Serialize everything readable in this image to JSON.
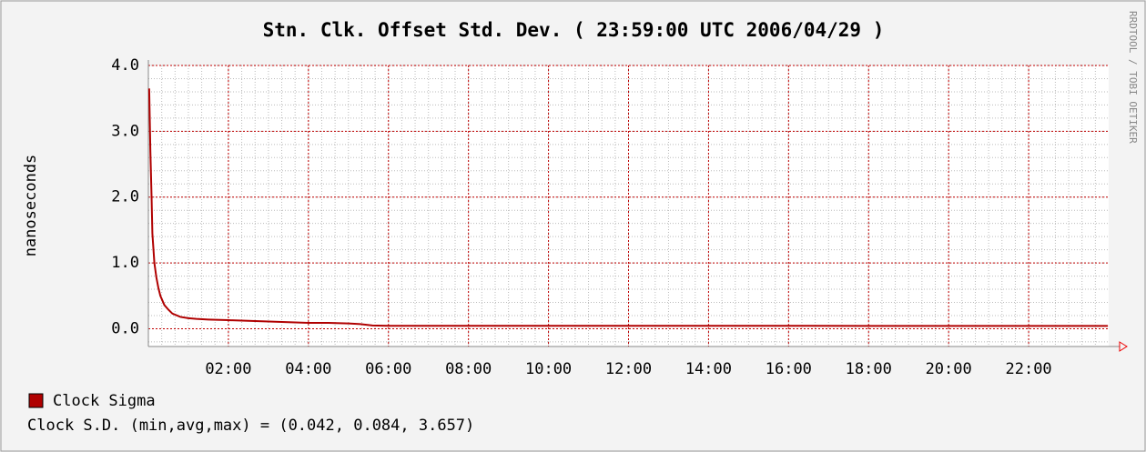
{
  "chart_data": {
    "type": "line",
    "title": "Stn. Clk. Offset Std. Dev. ( 23:59:00 UTC 2006/04/29 )",
    "y_label": "nanoseconds",
    "watermark": "RRDTOOL / TOBI OETIKER",
    "x": [
      0.02,
      0.05,
      0.08,
      0.1,
      0.15,
      0.2,
      0.25,
      0.3,
      0.4,
      0.5,
      0.6,
      0.8,
      1.0,
      1.2,
      1.5,
      2,
      2.5,
      3,
      3.5,
      4,
      4.5,
      5,
      5.3,
      5.6,
      6,
      8,
      10,
      12,
      14,
      16,
      18,
      20,
      22,
      23.98
    ],
    "series": [
      {
        "name": "Clock Sigma",
        "color": "#b00000",
        "values": [
          3.65,
          2.7,
          2.0,
          1.45,
          1.0,
          0.78,
          0.62,
          0.5,
          0.36,
          0.29,
          0.23,
          0.18,
          0.16,
          0.15,
          0.14,
          0.13,
          0.12,
          0.11,
          0.1,
          0.09,
          0.09,
          0.08,
          0.07,
          0.05,
          0.045,
          0.045,
          0.045,
          0.044,
          0.044,
          0.044,
          0.043,
          0.043,
          0.043,
          0.043
        ]
      }
    ],
    "xlim": [
      0,
      24
    ],
    "ylim": [
      -0.27,
      4.0
    ],
    "xticks": [
      {
        "value": 2,
        "label": "02:00"
      },
      {
        "value": 4,
        "label": "04:00"
      },
      {
        "value": 6,
        "label": "06:00"
      },
      {
        "value": 8,
        "label": "08:00"
      },
      {
        "value": 10,
        "label": "10:00"
      },
      {
        "value": 12,
        "label": "12:00"
      },
      {
        "value": 14,
        "label": "14:00"
      },
      {
        "value": 16,
        "label": "16:00"
      },
      {
        "value": 18,
        "label": "18:00"
      },
      {
        "value": 20,
        "label": "20:00"
      },
      {
        "value": 22,
        "label": "22:00"
      }
    ],
    "yticks": [
      {
        "value": 0,
        "label": "0.0"
      },
      {
        "value": 1,
        "label": "1.0"
      },
      {
        "value": 2,
        "label": "2.0"
      },
      {
        "value": 3,
        "label": "3.0"
      },
      {
        "value": 4,
        "label": "4.0"
      }
    ],
    "grid": true,
    "grid_color": "#c00000",
    "legend_note": "Clock S.D. (min,avg,max) = (0.042, 0.084, 3.657)"
  }
}
